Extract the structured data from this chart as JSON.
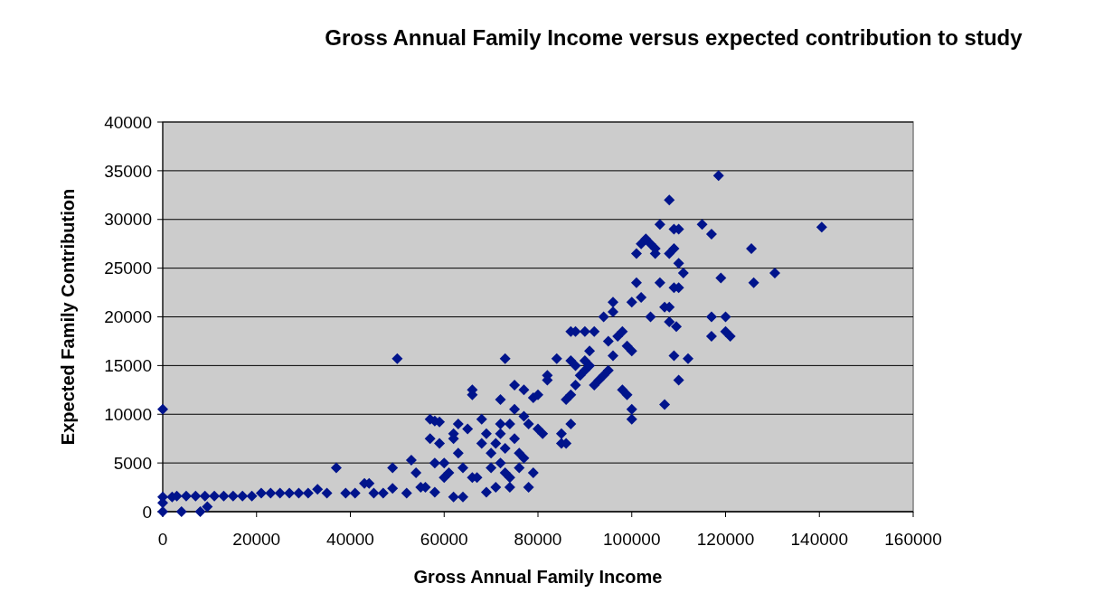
{
  "chart_data": {
    "type": "scatter",
    "title": "Gross Annual Family Income versus expected contribution to study",
    "xlabel": "Gross Annual Family Income",
    "ylabel": "Expected Family Contribution",
    "xlim": [
      0,
      160000
    ],
    "xticks": [
      0,
      20000,
      40000,
      60000,
      80000,
      100000,
      120000,
      140000,
      160000
    ],
    "ylim": [
      0,
      40000
    ],
    "yticks": [
      0,
      5000,
      10000,
      15000,
      20000,
      25000,
      30000,
      35000,
      40000
    ],
    "grid": "y",
    "marker": "diamond",
    "series": [
      {
        "color": "#00148c",
        "x": [
          0,
          0,
          0,
          0,
          4000,
          8000,
          9500,
          2000,
          3000,
          5000,
          7000,
          9000,
          11000,
          13000,
          15000,
          17000,
          19000,
          21000,
          23000,
          25000,
          27000,
          29000,
          31000,
          33000,
          35000,
          37000,
          39000,
          41000,
          43000,
          44000,
          45000,
          47000,
          49000,
          49000,
          50000,
          52000,
          53000,
          54000,
          55000,
          56000,
          57000,
          57000,
          58000,
          59000,
          58000,
          58000,
          59000,
          60000,
          60000,
          61000,
          62000,
          62000,
          62000,
          63000,
          63000,
          64000,
          64000,
          65000,
          66000,
          66000,
          66000,
          67000,
          68000,
          68000,
          69000,
          69000,
          70000,
          70000,
          71000,
          71000,
          72000,
          72000,
          72000,
          72000,
          73000,
          73000,
          73000,
          74000,
          74000,
          74000,
          75000,
          75000,
          75000,
          76000,
          76000,
          77000,
          77000,
          77000,
          78000,
          78000,
          79000,
          79000,
          80000,
          80000,
          81000,
          82000,
          82000,
          84000,
          85000,
          85000,
          86000,
          86000,
          87000,
          87000,
          87000,
          87000,
          88000,
          88000,
          88000,
          89000,
          90000,
          90000,
          90000,
          91000,
          91000,
          92000,
          92000,
          93000,
          94000,
          94000,
          95000,
          95000,
          96000,
          96000,
          96000,
          97000,
          98000,
          98000,
          99000,
          99000,
          100000,
          100000,
          100000,
          100000,
          101000,
          101000,
          102000,
          102000,
          103000,
          104000,
          104000,
          105000,
          105000,
          106000,
          106000,
          107000,
          107000,
          108000,
          108000,
          108000,
          108000,
          109000,
          109000,
          109000,
          109000,
          109500,
          110000,
          110000,
          110000,
          110000,
          111000,
          112000,
          115000,
          117000,
          117000,
          117000,
          118500,
          119000,
          120000,
          120000,
          121000,
          125500,
          126000,
          130500,
          140500
        ],
        "values": [
          10500,
          1500,
          900,
          0,
          0,
          0,
          500,
          1500,
          1600,
          1600,
          1600,
          1600,
          1600,
          1600,
          1600,
          1600,
          1600,
          1900,
          1900,
          1900,
          1900,
          1900,
          1900,
          2300,
          1900,
          4500,
          1900,
          1900,
          2900,
          2900,
          1900,
          1900,
          2400,
          4500,
          15700,
          1900,
          5300,
          4000,
          2500,
          2500,
          7500,
          9500,
          9300,
          9200,
          5000,
          2000,
          7000,
          5000,
          3500,
          4000,
          1500,
          8000,
          7500,
          6000,
          9000,
          4500,
          1500,
          8500,
          12500,
          12000,
          3500,
          3500,
          9500,
          7000,
          8000,
          2000,
          6000,
          4500,
          2500,
          7000,
          11500,
          9000,
          8000,
          5000,
          15700,
          6500,
          4000,
          9000,
          3500,
          2500,
          13000,
          10500,
          7500,
          6000,
          4500,
          12500,
          9800,
          5500,
          9000,
          2500,
          11700,
          4000,
          12000,
          8500,
          8000,
          13500,
          14000,
          15700,
          8000,
          7000,
          11500,
          7000,
          18500,
          15500,
          12000,
          9000,
          18500,
          15000,
          13000,
          14000,
          18500,
          15500,
          14500,
          16500,
          15000,
          18500,
          13000,
          13500,
          20000,
          14000,
          17500,
          14500,
          21500,
          20500,
          16000,
          18000,
          18500,
          12500,
          12000,
          17000,
          16500,
          10500,
          9500,
          21500,
          26500,
          23500,
          27500,
          22000,
          28000,
          27500,
          20000,
          27000,
          26500,
          29500,
          23500,
          21000,
          11000,
          32000,
          26500,
          21000,
          19500,
          29000,
          27000,
          23000,
          16000,
          19000,
          29000,
          25500,
          23000,
          13500,
          24500,
          15700,
          29500,
          28500,
          20000,
          18000,
          34500,
          24000,
          20000,
          18500,
          18000,
          27000,
          23500,
          24500,
          29200
        ]
      }
    ]
  }
}
